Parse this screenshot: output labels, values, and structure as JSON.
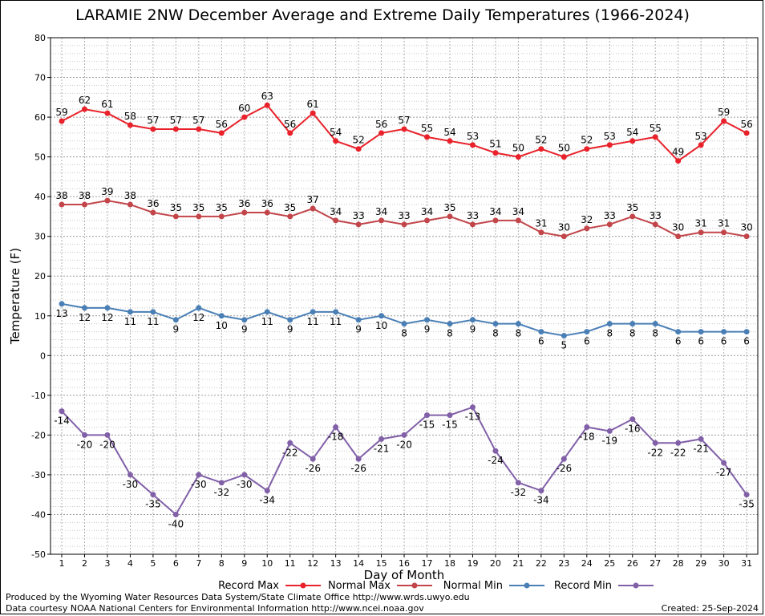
{
  "page": {
    "footer_left_1": "Produced by the Wyoming Water Resources Data System/State Climate Office http://www.wrds.uwyo.edu",
    "footer_left_2": "Data courtesy NOAA National Centers for Environmental Information http://www.ncei.noaa.gov",
    "footer_right": "Created:  25-Sep-2024"
  },
  "chart_data": {
    "type": "line",
    "title": "LARAMIE 2NW December Average and Extreme Daily Temperatures (1966-2024)",
    "xlabel": "Day of Month",
    "ylabel": "Temperature (F)",
    "ylim": [
      -50,
      80
    ],
    "yticks": [
      -50,
      -40,
      -30,
      -20,
      -10,
      0,
      10,
      20,
      30,
      40,
      50,
      60,
      70,
      80
    ],
    "grid": true,
    "legend_position": "bottom",
    "x": [
      1,
      2,
      3,
      4,
      5,
      6,
      7,
      8,
      9,
      10,
      11,
      12,
      13,
      14,
      15,
      16,
      17,
      18,
      19,
      20,
      21,
      22,
      23,
      24,
      25,
      26,
      27,
      28,
      29,
      30,
      31
    ],
    "series": [
      {
        "name": "Record Max",
        "color": "#e8212a",
        "values": [
          59,
          62,
          61,
          58,
          57,
          57,
          57,
          56,
          60,
          63,
          56,
          61,
          54,
          52,
          56,
          57,
          55,
          54,
          53,
          51,
          50,
          52,
          50,
          52,
          53,
          54,
          55,
          49,
          53,
          59,
          56
        ]
      },
      {
        "name": "Normal Max",
        "color": "#c2454a",
        "values": [
          38,
          38,
          39,
          38,
          36,
          35,
          35,
          35,
          36,
          36,
          35,
          37,
          34,
          33,
          34,
          33,
          34,
          35,
          33,
          34,
          34,
          31,
          30,
          32,
          33,
          35,
          33,
          30,
          31,
          31,
          30
        ]
      },
      {
        "name": "Normal Min",
        "color": "#4a7fb5",
        "values": [
          13,
          12,
          12,
          11,
          11,
          9,
          12,
          10,
          9,
          11,
          9,
          11,
          11,
          9,
          10,
          8,
          9,
          8,
          9,
          8,
          8,
          6,
          5,
          6,
          8,
          8,
          8,
          6,
          6,
          6,
          6
        ]
      },
      {
        "name": "Record Min",
        "color": "#8160a8",
        "values": [
          -14,
          -20,
          -20,
          -30,
          -35,
          -40,
          -30,
          -32,
          -30,
          -34,
          -22,
          -26,
          -18,
          -26,
          -21,
          -20,
          -15,
          -15,
          -13,
          -24,
          -32,
          -34,
          -26,
          -18,
          -19,
          -16,
          -22,
          -22,
          -21,
          -27,
          -35
        ]
      }
    ]
  }
}
